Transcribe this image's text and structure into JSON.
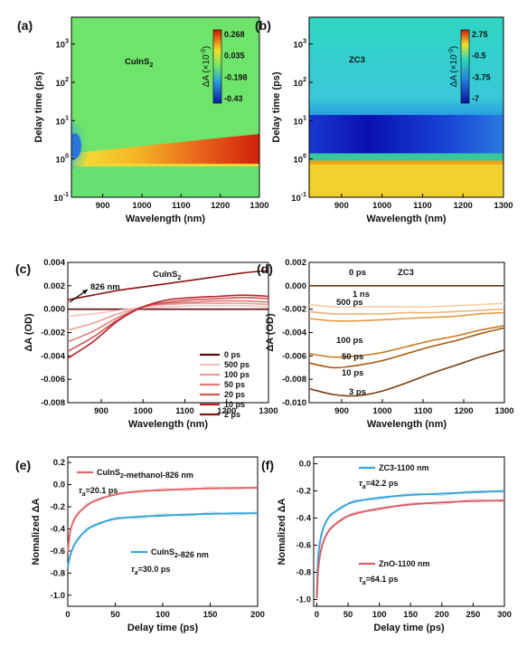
{
  "chart_data": [
    {
      "panel": "(a)",
      "type": "heatmap",
      "annotation": "CuInS2",
      "xlabel": "Wavelength (nm)",
      "ylabel": "Delay time (ps)",
      "xlim": [
        820,
        1300
      ],
      "ylim": [
        0.1,
        5000
      ],
      "yscale": "log",
      "xticks": [
        "900",
        "1000",
        "1100",
        "1200",
        "1300"
      ],
      "yticks": [
        "10^-1",
        "10^0",
        "10^1",
        "10^2",
        "10^3"
      ],
      "colorbar": {
        "title": "ΔA (×10^-3)",
        "ticks": [
          "0.268",
          "0.035",
          "-0.198",
          "-0.43"
        ],
        "range": [
          -0.43,
          0.3
        ]
      },
      "colors": {
        "ground": "#6fe46a",
        "bleach": "#2a76d8",
        "absorption": "#d42a0a",
        "early": "#f3c62a"
      }
    },
    {
      "panel": "(b)",
      "type": "heatmap",
      "annotation": "ZC3",
      "xlabel": "Wavelength (nm)",
      "ylabel": "Delay time (ps)",
      "xlim": [
        820,
        1300
      ],
      "ylim": [
        0.1,
        5000
      ],
      "yscale": "log",
      "xticks": [
        "900",
        "1000",
        "1100",
        "1200",
        "1300"
      ],
      "yticks": [
        "10^-1",
        "10^0",
        "10^1",
        "10^2",
        "10^3"
      ],
      "colorbar": {
        "title": "ΔA (×10^-3)",
        "ticks": [
          "2.75",
          "-0.5",
          "-3.75",
          "-7"
        ],
        "range": [
          -7,
          3
        ]
      },
      "colors": {
        "ground": "#2fd8b8",
        "bleach": "#1018c8",
        "early": "#f0d02a"
      }
    },
    {
      "panel": "(c)",
      "type": "line",
      "annotation": "CuInS2",
      "arrow_label": "826 nm",
      "xlabel": "Wavelength (nm)",
      "ylabel": "ΔA (OD)",
      "xlim": [
        820,
        1300
      ],
      "ylim": [
        -0.008,
        0.004
      ],
      "xticks": [
        900,
        1000,
        1100,
        1200,
        1300
      ],
      "yticks": [
        "0.004",
        "0.002",
        "0.000",
        "-0.002",
        "-0.004",
        "-0.006",
        "-0.008"
      ],
      "legend_position": "bottom-right",
      "x": [
        820,
        880,
        940,
        1000,
        1060,
        1120,
        1180,
        1240,
        1300
      ],
      "series": [
        {
          "name": "0 ps",
          "color": "#5a0a0a",
          "values": [
            0.0,
            0.0,
            0.0,
            0.0,
            0.0,
            0.0,
            0.0,
            0.0,
            0.0
          ]
        },
        {
          "name": "500 ps",
          "color": "#f2c4c0",
          "values": [
            -0.0006,
            -0.0004,
            -0.0001,
            0.0001,
            0.0002,
            0.0003,
            0.0003,
            0.0003,
            0.0002
          ]
        },
        {
          "name": "100 ps",
          "color": "#ec9f99",
          "values": [
            -0.0018,
            -0.0012,
            -0.0004,
            0.0002,
            0.0004,
            0.0005,
            0.0005,
            0.0005,
            0.0004
          ]
        },
        {
          "name": "50 ps",
          "color": "#e07a78",
          "values": [
            -0.0028,
            -0.0019,
            -0.0007,
            0.0002,
            0.0005,
            0.0006,
            0.0007,
            0.0007,
            0.0006
          ]
        },
        {
          "name": "20 ps",
          "color": "#cf5456",
          "values": [
            -0.0036,
            -0.0024,
            -0.0009,
            0.0002,
            0.0006,
            0.0008,
            0.0009,
            0.001,
            0.0009
          ]
        },
        {
          "name": "10 ps",
          "color": "#b7252f",
          "values": [
            -0.0042,
            -0.0028,
            -0.001,
            0.0002,
            0.0008,
            0.001,
            0.0011,
            0.0012,
            0.0011
          ]
        },
        {
          "name": "2 ps",
          "color": "#8a1212",
          "values": [
            0.0008,
            0.0012,
            0.0016,
            0.0019,
            0.0022,
            0.0025,
            0.0028,
            0.0031,
            0.0033
          ]
        }
      ]
    },
    {
      "panel": "(d)",
      "type": "line",
      "annotation": "ZC3",
      "xlabel": "Wavelength (nm)",
      "ylabel": "ΔA (OD)",
      "xlim": [
        820,
        1300
      ],
      "ylim": [
        -0.01,
        0.002
      ],
      "xticks": [
        900,
        1000,
        1100,
        1200,
        1300
      ],
      "yticks": [
        "0.002",
        "0.000",
        "-0.002",
        "-0.004",
        "-0.006",
        "-0.008",
        "-0.010"
      ],
      "x": [
        820,
        880,
        940,
        1000,
        1060,
        1120,
        1180,
        1240,
        1300
      ],
      "series": [
        {
          "name": "0 ps",
          "color": "#6b3a10",
          "values": [
            0.0,
            0.0,
            0.0,
            0.0,
            0.0,
            0.0,
            0.0,
            0.0,
            0.0
          ]
        },
        {
          "name": "1 ns",
          "color": "#f4cfa8",
          "values": [
            -0.0016,
            -0.0018,
            -0.0018,
            -0.0018,
            -0.0018,
            -0.0018,
            -0.0017,
            -0.0016,
            -0.0015
          ]
        },
        {
          "name": "500 ps",
          "color": "#efb276",
          "values": [
            -0.0022,
            -0.0024,
            -0.0024,
            -0.0024,
            -0.0023,
            -0.0023,
            -0.0022,
            -0.0021,
            -0.002
          ]
        },
        {
          "name": "100 ps",
          "color": "#e29a45",
          "values": [
            -0.0028,
            -0.003,
            -0.003,
            -0.0029,
            -0.0028,
            -0.0027,
            -0.0026,
            -0.0024,
            -0.0023
          ]
        },
        {
          "name": "50 ps",
          "color": "#c77a22",
          "values": [
            -0.0058,
            -0.0061,
            -0.006,
            -0.0057,
            -0.0052,
            -0.0047,
            -0.0043,
            -0.0038,
            -0.0034
          ]
        },
        {
          "name": "10 ps",
          "color": "#a65a10",
          "values": [
            -0.0066,
            -0.007,
            -0.0068,
            -0.0064,
            -0.0058,
            -0.0052,
            -0.0047,
            -0.0041,
            -0.0036
          ]
        },
        {
          "name": "3 ps",
          "color": "#7a3e10",
          "values": [
            -0.0088,
            -0.0093,
            -0.0094,
            -0.009,
            -0.0083,
            -0.0075,
            -0.0068,
            -0.0061,
            -0.0055
          ]
        }
      ],
      "labels": [
        "0 ps",
        "1 ns",
        "500 ps",
        "100 ps",
        "50 ps",
        "10 ps",
        "3 ps"
      ]
    },
    {
      "panel": "(e)",
      "type": "line",
      "xlabel": "Delay time (ps)",
      "ylabel": "Nomalized ΔA",
      "xlim": [
        0,
        200
      ],
      "ylim": [
        -1.1,
        0.25
      ],
      "xticks": [
        0,
        50,
        100,
        150,
        200
      ],
      "yticks": [
        "0.2",
        "0.0",
        "-0.2",
        "-0.4",
        "-0.6",
        "-0.8",
        "-1.0"
      ],
      "x": [
        0,
        2,
        5,
        10,
        20,
        30,
        50,
        75,
        100,
        125,
        150,
        175,
        200
      ],
      "series": [
        {
          "name": "CuInS2-methanol-826 nm",
          "tau": "τa=20.1 ps",
          "color": "#e0686a",
          "values": [
            -0.62,
            -0.45,
            -0.35,
            -0.27,
            -0.19,
            -0.14,
            -0.09,
            -0.06,
            -0.05,
            -0.04,
            -0.035,
            -0.03,
            -0.03
          ]
        },
        {
          "name": "CuInS2-826 nm",
          "tau": "τa=30.0 ps",
          "color": "#3aa4d8",
          "values": [
            -0.75,
            -0.66,
            -0.58,
            -0.5,
            -0.41,
            -0.36,
            -0.31,
            -0.29,
            -0.28,
            -0.27,
            -0.265,
            -0.26,
            -0.26
          ]
        }
      ]
    },
    {
      "panel": "(f)",
      "type": "line",
      "xlabel": "Delay time (ps)",
      "ylabel": "Nomalized ΔA",
      "xlim": [
        -5,
        300
      ],
      "ylim": [
        -1.05,
        0.05
      ],
      "xticks": [
        0,
        50,
        100,
        150,
        200,
        250,
        300
      ],
      "yticks": [
        "0.0",
        "-0.2",
        "-0.4",
        "-0.6",
        "-0.8",
        "-1.0"
      ],
      "x": [
        0,
        2,
        5,
        10,
        20,
        40,
        60,
        100,
        150,
        200,
        250,
        300
      ],
      "series": [
        {
          "name": "ZC3-1100 nm",
          "tau": "τa=42.2 ps",
          "color": "#3aa4d8",
          "values": [
            -0.98,
            -0.7,
            -0.58,
            -0.48,
            -0.39,
            -0.32,
            -0.28,
            -0.25,
            -0.23,
            -0.22,
            -0.21,
            -0.2
          ]
        },
        {
          "name": "ZnO-1100 nm",
          "tau": "τa=64.1 ps",
          "color": "#d8606a",
          "values": [
            -0.99,
            -0.8,
            -0.68,
            -0.58,
            -0.49,
            -0.41,
            -0.37,
            -0.33,
            -0.3,
            -0.285,
            -0.275,
            -0.27
          ]
        }
      ]
    }
  ]
}
